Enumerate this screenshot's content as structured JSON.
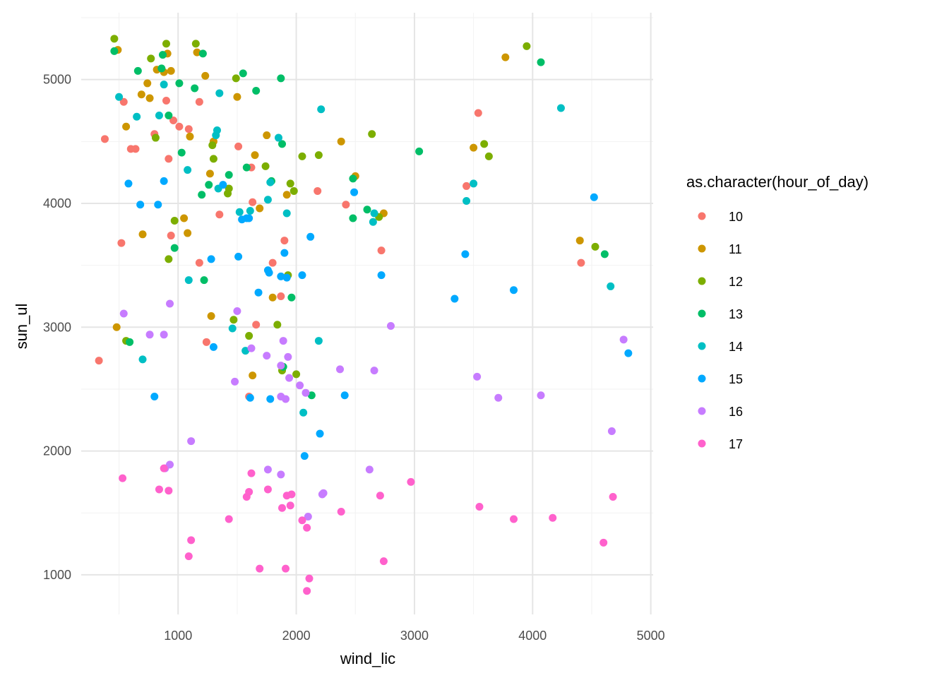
{
  "chart_data": {
    "type": "scatter",
    "xlabel": "wind_lic",
    "ylabel": "sun_ul",
    "xlim": [
      180,
      5020
    ],
    "ylim": [
      680,
      5540
    ],
    "x_ticks": [
      1000,
      2000,
      3000,
      4000,
      5000
    ],
    "y_ticks": [
      1000,
      2000,
      3000,
      4000,
      5000
    ],
    "grid": true,
    "legend": {
      "title": "as.character(hour_of_day)",
      "position": "right"
    },
    "series": [
      {
        "name": "10",
        "color": "#F8766D",
        "points": [
          [
            380,
            4520
          ],
          [
            330,
            2730
          ],
          [
            540,
            4820
          ],
          [
            520,
            3680
          ],
          [
            600,
            4440
          ],
          [
            640,
            4440
          ],
          [
            800,
            4560
          ],
          [
            900,
            4830
          ],
          [
            920,
            4360
          ],
          [
            940,
            3740
          ],
          [
            960,
            4670
          ],
          [
            1010,
            4620
          ],
          [
            1090,
            4600
          ],
          [
            1180,
            4820
          ],
          [
            1180,
            3520
          ],
          [
            1240,
            2880
          ],
          [
            1350,
            3910
          ],
          [
            1510,
            4460
          ],
          [
            1600,
            2440
          ],
          [
            1620,
            4290
          ],
          [
            1630,
            4010
          ],
          [
            1660,
            3020
          ],
          [
            1800,
            3520
          ],
          [
            1870,
            3250
          ],
          [
            1900,
            3700
          ],
          [
            2180,
            4100
          ],
          [
            2420,
            3990
          ],
          [
            2720,
            3620
          ],
          [
            3440,
            4140
          ],
          [
            3540,
            4730
          ],
          [
            4410,
            3520
          ]
        ]
      },
      {
        "name": "11",
        "color": "#CD9600",
        "points": [
          [
            490,
            5240
          ],
          [
            480,
            3000
          ],
          [
            560,
            4620
          ],
          [
            690,
            4880
          ],
          [
            700,
            3750
          ],
          [
            740,
            4970
          ],
          [
            760,
            4850
          ],
          [
            820,
            5080
          ],
          [
            880,
            5060
          ],
          [
            910,
            5210
          ],
          [
            940,
            5070
          ],
          [
            1050,
            3880
          ],
          [
            1080,
            3760
          ],
          [
            1100,
            4540
          ],
          [
            1160,
            5220
          ],
          [
            1230,
            5030
          ],
          [
            1270,
            4240
          ],
          [
            1280,
            3090
          ],
          [
            1300,
            4500
          ],
          [
            1500,
            4860
          ],
          [
            1630,
            2610
          ],
          [
            1650,
            4390
          ],
          [
            1690,
            3960
          ],
          [
            1750,
            4550
          ],
          [
            1800,
            3240
          ],
          [
            1920,
            4070
          ],
          [
            2380,
            4500
          ],
          [
            2500,
            4220
          ],
          [
            2740,
            3920
          ],
          [
            3500,
            4450
          ],
          [
            3770,
            5180
          ],
          [
            4400,
            3700
          ]
        ]
      },
      {
        "name": "12",
        "color": "#7CAE00",
        "points": [
          [
            460,
            5330
          ],
          [
            560,
            2890
          ],
          [
            770,
            5170
          ],
          [
            810,
            4530
          ],
          [
            900,
            5290
          ],
          [
            920,
            3550
          ],
          [
            970,
            3860
          ],
          [
            1150,
            5290
          ],
          [
            1290,
            4470
          ],
          [
            1300,
            4360
          ],
          [
            1420,
            4080
          ],
          [
            1430,
            4120
          ],
          [
            1470,
            3060
          ],
          [
            1490,
            5010
          ],
          [
            1600,
            2930
          ],
          [
            1740,
            4300
          ],
          [
            1840,
            3020
          ],
          [
            1880,
            2650
          ],
          [
            1930,
            3420
          ],
          [
            1950,
            4160
          ],
          [
            1980,
            4100
          ],
          [
            2000,
            2620
          ],
          [
            2050,
            4380
          ],
          [
            2190,
            4390
          ],
          [
            2640,
            4560
          ],
          [
            2700,
            3890
          ],
          [
            3950,
            5270
          ],
          [
            4530,
            3650
          ],
          [
            3590,
            4480
          ],
          [
            3630,
            4380
          ]
        ]
      },
      {
        "name": "13",
        "color": "#00BE67",
        "points": [
          [
            460,
            5230
          ],
          [
            590,
            2880
          ],
          [
            660,
            5070
          ],
          [
            860,
            5090
          ],
          [
            870,
            5200
          ],
          [
            920,
            4710
          ],
          [
            970,
            3640
          ],
          [
            1010,
            4970
          ],
          [
            1030,
            4410
          ],
          [
            1140,
            4930
          ],
          [
            1200,
            4070
          ],
          [
            1210,
            5210
          ],
          [
            1220,
            3380
          ],
          [
            1260,
            4150
          ],
          [
            1430,
            4230
          ],
          [
            1550,
            5050
          ],
          [
            1580,
            4290
          ],
          [
            1660,
            4910
          ],
          [
            1790,
            4180
          ],
          [
            1870,
            5010
          ],
          [
            1880,
            4480
          ],
          [
            1890,
            2680
          ],
          [
            1960,
            3240
          ],
          [
            2130,
            2450
          ],
          [
            2480,
            4200
          ],
          [
            2480,
            3880
          ],
          [
            2600,
            3950
          ],
          [
            3040,
            4420
          ],
          [
            4070,
            5140
          ],
          [
            4610,
            3590
          ]
        ]
      },
      {
        "name": "14",
        "color": "#00BFC4",
        "points": [
          [
            500,
            4860
          ],
          [
            650,
            4700
          ],
          [
            700,
            2740
          ],
          [
            840,
            4710
          ],
          [
            880,
            4960
          ],
          [
            1080,
            4270
          ],
          [
            1090,
            3380
          ],
          [
            1320,
            4550
          ],
          [
            1330,
            4590
          ],
          [
            1340,
            4120
          ],
          [
            1350,
            4890
          ],
          [
            1460,
            2990
          ],
          [
            1520,
            3930
          ],
          [
            1570,
            2810
          ],
          [
            1610,
            3940
          ],
          [
            1760,
            4030
          ],
          [
            1780,
            4170
          ],
          [
            1850,
            4530
          ],
          [
            1920,
            3920
          ],
          [
            2060,
            2310
          ],
          [
            2190,
            2890
          ],
          [
            2210,
            4760
          ],
          [
            2650,
            3850
          ],
          [
            2660,
            3920
          ],
          [
            3440,
            4020
          ],
          [
            3500,
            4160
          ],
          [
            4240,
            4770
          ],
          [
            4660,
            3330
          ]
        ]
      },
      {
        "name": "15",
        "color": "#00A9FF",
        "points": [
          [
            580,
            4160
          ],
          [
            680,
            3990
          ],
          [
            800,
            2440
          ],
          [
            830,
            3990
          ],
          [
            880,
            4180
          ],
          [
            1280,
            3550
          ],
          [
            1300,
            2840
          ],
          [
            1380,
            4150
          ],
          [
            1510,
            3570
          ],
          [
            1540,
            3870
          ],
          [
            1580,
            3880
          ],
          [
            1600,
            3880
          ],
          [
            1610,
            2430
          ],
          [
            1680,
            3280
          ],
          [
            1760,
            3460
          ],
          [
            1770,
            3440
          ],
          [
            1780,
            2420
          ],
          [
            1870,
            3410
          ],
          [
            1900,
            3600
          ],
          [
            1920,
            3400
          ],
          [
            2050,
            3420
          ],
          [
            2070,
            1960
          ],
          [
            2120,
            3730
          ],
          [
            2200,
            2140
          ],
          [
            2410,
            2450
          ],
          [
            2490,
            4090
          ],
          [
            2720,
            3420
          ],
          [
            3340,
            3230
          ],
          [
            3430,
            3590
          ],
          [
            3840,
            3300
          ],
          [
            4520,
            4050
          ],
          [
            4810,
            2790
          ]
        ]
      },
      {
        "name": "16",
        "color": "#C77CFF",
        "points": [
          [
            540,
            3110
          ],
          [
            760,
            2940
          ],
          [
            880,
            2940
          ],
          [
            890,
            1860
          ],
          [
            930,
            3190
          ],
          [
            930,
            1890
          ],
          [
            1110,
            2080
          ],
          [
            1480,
            2560
          ],
          [
            1500,
            3130
          ],
          [
            1620,
            2830
          ],
          [
            1750,
            2770
          ],
          [
            1760,
            1850
          ],
          [
            1870,
            2690
          ],
          [
            1870,
            1810
          ],
          [
            1870,
            2440
          ],
          [
            1890,
            2890
          ],
          [
            1910,
            2420
          ],
          [
            1930,
            2760
          ],
          [
            1940,
            2590
          ],
          [
            2030,
            2530
          ],
          [
            2080,
            2470
          ],
          [
            2100,
            1470
          ],
          [
            2220,
            1650
          ],
          [
            2230,
            1660
          ],
          [
            2370,
            2660
          ],
          [
            2620,
            1850
          ],
          [
            2660,
            2650
          ],
          [
            2800,
            3010
          ],
          [
            3530,
            2600
          ],
          [
            3710,
            2430
          ],
          [
            4070,
            2450
          ],
          [
            4670,
            2160
          ],
          [
            4770,
            2900
          ]
        ]
      },
      {
        "name": "17",
        "color": "#FF61CC",
        "points": [
          [
            530,
            1780
          ],
          [
            840,
            1690
          ],
          [
            880,
            1860
          ],
          [
            920,
            1680
          ],
          [
            1090,
            1150
          ],
          [
            1110,
            1280
          ],
          [
            1430,
            1450
          ],
          [
            1580,
            1630
          ],
          [
            1600,
            1670
          ],
          [
            1620,
            1820
          ],
          [
            1690,
            1050
          ],
          [
            1760,
            1690
          ],
          [
            1880,
            1540
          ],
          [
            1910,
            1050
          ],
          [
            1920,
            1640
          ],
          [
            1950,
            1560
          ],
          [
            1960,
            1650
          ],
          [
            2050,
            1440
          ],
          [
            2090,
            870
          ],
          [
            2090,
            1380
          ],
          [
            2110,
            970
          ],
          [
            2380,
            1510
          ],
          [
            2710,
            1640
          ],
          [
            2740,
            1110
          ],
          [
            2970,
            1750
          ],
          [
            3550,
            1550
          ],
          [
            3840,
            1450
          ],
          [
            4170,
            1460
          ],
          [
            4600,
            1260
          ],
          [
            4680,
            1630
          ]
        ]
      }
    ]
  }
}
